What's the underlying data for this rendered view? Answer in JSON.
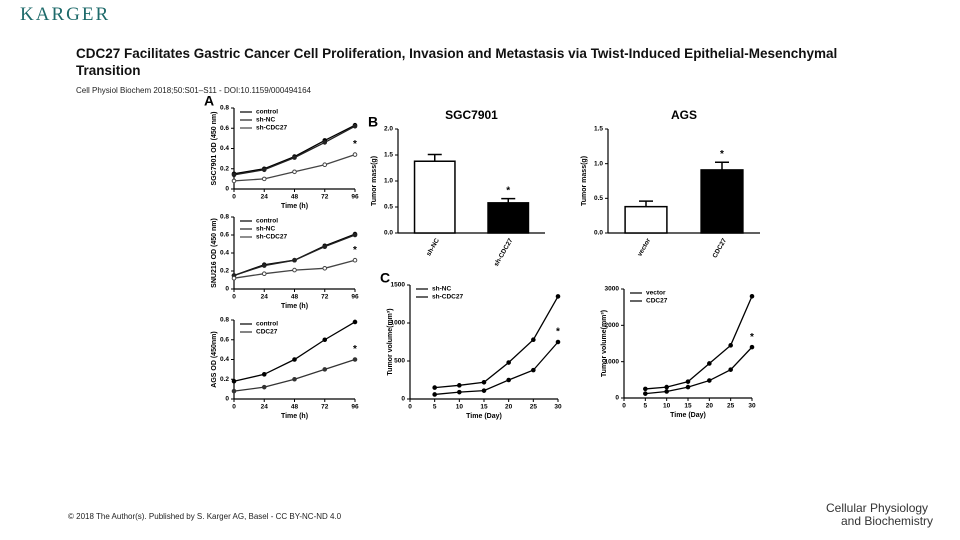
{
  "logo": "KARGER",
  "title": "CDC27 Facilitates Gastric Cancer Cell Proliferation, Invasion and Metastasis via Twist-Induced Epithelial-Mesenchymal Transition",
  "citation": "Cell Physiol Biochem 2018;50:S01–S11 - DOI:10.1159/000494164",
  "footer": "© 2018 The Author(s). Published by S. Karger AG, Basel - CC BY-NC-ND 4.0",
  "journal": [
    "Cellular Physiology",
    "and Biochemistry"
  ],
  "chart_data": [
    {
      "type": "line",
      "panel": "A",
      "y_label": "SGC7901 OD (450 nm)",
      "x_label": "Time (h)",
      "annotation": "*",
      "x": [
        0,
        24,
        48,
        72,
        96
      ],
      "xlim": [
        0,
        96
      ],
      "xticks": [
        0,
        24,
        48,
        72,
        96
      ],
      "ylim": [
        0,
        0.8
      ],
      "yticks": [
        0,
        0.2,
        0.4,
        0.6,
        0.8
      ],
      "series": [
        {
          "name": "control",
          "color": "#000000",
          "values": [
            0.15,
            0.2,
            0.32,
            0.48,
            0.63
          ]
        },
        {
          "name": "sh-NC",
          "color": "#222222",
          "values": [
            0.14,
            0.19,
            0.31,
            0.46,
            0.62
          ]
        },
        {
          "name": "sh-CDC27",
          "color": "#444444",
          "values": [
            0.08,
            0.1,
            0.17,
            0.24,
            0.34
          ]
        }
      ]
    },
    {
      "type": "line",
      "y_label": "SNU216 OD (450 nm)",
      "x_label": "Time (h)",
      "annotation": "*",
      "x": [
        0,
        24,
        48,
        72,
        96
      ],
      "xlim": [
        0,
        96
      ],
      "xticks": [
        0,
        24,
        48,
        72,
        96
      ],
      "ylim": [
        0,
        0.8
      ],
      "yticks": [
        0,
        0.2,
        0.4,
        0.6,
        0.8
      ],
      "series": [
        {
          "name": "control",
          "color": "#000000",
          "values": [
            0.15,
            0.27,
            0.32,
            0.48,
            0.61
          ]
        },
        {
          "name": "sh-NC",
          "color": "#222222",
          "values": [
            0.15,
            0.26,
            0.32,
            0.47,
            0.6
          ]
        },
        {
          "name": "sh-CDC27",
          "color": "#444444",
          "values": [
            0.12,
            0.17,
            0.21,
            0.23,
            0.32
          ]
        }
      ]
    },
    {
      "type": "line",
      "y_label": "AGS OD (450nm)",
      "x_label": "Time (h)",
      "annotation": "*",
      "x": [
        0,
        24,
        48,
        72,
        96
      ],
      "xlim": [
        0,
        96
      ],
      "xticks": [
        0,
        24,
        48,
        72,
        96
      ],
      "ylim": [
        0,
        0.8
      ],
      "yticks": [
        0,
        0.2,
        0.4,
        0.6,
        0.8
      ],
      "series": [
        {
          "name": "control",
          "color": "#000000",
          "values": [
            0.18,
            0.25,
            0.4,
            0.6,
            0.78
          ]
        },
        {
          "name": "CDC27",
          "color": "#333333",
          "values": [
            0.08,
            0.12,
            0.2,
            0.3,
            0.4
          ]
        }
      ]
    },
    {
      "type": "bar",
      "panel": "B",
      "title": "SGC7901",
      "y_label": "Tumor mass(g)",
      "annotation": "*",
      "categories": [
        "sh-NC",
        "sh-CDC27"
      ],
      "values": [
        1.38,
        0.58
      ],
      "errors": [
        0.13,
        0.08
      ],
      "colors": [
        "#ffffff",
        "#000000"
      ],
      "ylim": [
        0,
        2
      ],
      "yticks": [
        {
          "value": 0,
          "label": "0.0"
        },
        0.5,
        {
          "value": 1,
          "label": "1.0"
        },
        1.5,
        {
          "value": 2,
          "label": "2.0"
        }
      ]
    },
    {
      "type": "bar",
      "title": "AGS",
      "y_label": "Tumor mass(g)",
      "annotation": "*",
      "categories": [
        "vector",
        "CDC27"
      ],
      "values": [
        0.38,
        0.91
      ],
      "errors": [
        0.08,
        0.11
      ],
      "colors": [
        "#ffffff",
        "#000000"
      ],
      "ylim": [
        0,
        1.5
      ],
      "yticks": [
        {
          "value": 0,
          "label": "0.0"
        },
        0.5,
        {
          "value": 1,
          "label": "1.0"
        },
        1.5
      ]
    },
    {
      "type": "line",
      "panel": "C",
      "y_label": "Tumor volume(mm³)",
      "x_label": "Time (Day)",
      "annotation": "*",
      "x": [
        5,
        10,
        15,
        20,
        25,
        30
      ],
      "xlim": [
        0,
        30
      ],
      "xticks": [
        0,
        5,
        10,
        15,
        20,
        25,
        30
      ],
      "ylim": [
        0,
        1500
      ],
      "yticks": [
        0,
        500,
        1000,
        1500
      ],
      "series": [
        {
          "name": "sh-NC",
          "color": "#000000",
          "values": [
            150,
            180,
            220,
            480,
            780,
            1350
          ]
        },
        {
          "name": "sh-CDC27",
          "color": "#000000",
          "values": [
            60,
            90,
            110,
            250,
            380,
            750
          ]
        }
      ]
    },
    {
      "type": "line",
      "y_label": "Tumor volume(mm³)",
      "x_label": "Time (Day)",
      "annotation": "*",
      "x": [
        5,
        10,
        15,
        20,
        25,
        30
      ],
      "xlim": [
        0,
        30
      ],
      "xticks": [
        0,
        5,
        10,
        15,
        20,
        25,
        30
      ],
      "ylim": [
        0,
        3000
      ],
      "yticks": [
        0,
        1000,
        2000,
        3000
      ],
      "series": [
        {
          "name": "vector",
          "color": "#000000",
          "values": [
            250,
            300,
            450,
            950,
            1450,
            2800
          ]
        },
        {
          "name": "CDC27",
          "color": "#000000",
          "values": [
            120,
            180,
            300,
            480,
            780,
            1400
          ]
        }
      ]
    }
  ]
}
